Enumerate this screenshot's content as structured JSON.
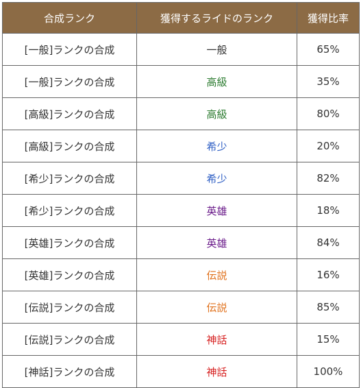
{
  "header": {
    "source_rank": "合成ランク",
    "result_rank": "獲得するライドのランク",
    "rate": "獲得比率"
  },
  "colors": {
    "一般": "#333333",
    "高級": "#2e7d32",
    "希少": "#2f5fc4",
    "英雄": "#6a1b8a",
    "伝説": "#e0701a",
    "神話": "#d61f1f"
  },
  "rows": [
    {
      "source": "[一般]ランクの合成",
      "result": "一般",
      "rate": "65%"
    },
    {
      "source": "[一般]ランクの合成",
      "result": "高級",
      "rate": "35%"
    },
    {
      "source": "[高級]ランクの合成",
      "result": "高級",
      "rate": "80%"
    },
    {
      "source": "[高級]ランクの合成",
      "result": "希少",
      "rate": "20%"
    },
    {
      "source": "[希少]ランクの合成",
      "result": "希少",
      "rate": "82%"
    },
    {
      "source": "[希少]ランクの合成",
      "result": "英雄",
      "rate": "18%"
    },
    {
      "source": "[英雄]ランクの合成",
      "result": "英雄",
      "rate": "84%"
    },
    {
      "source": "[英雄]ランクの合成",
      "result": "伝説",
      "rate": "16%"
    },
    {
      "source": "[伝説]ランクの合成",
      "result": "伝説",
      "rate": "85%"
    },
    {
      "source": "[伝説]ランクの合成",
      "result": "神話",
      "rate": "15%"
    },
    {
      "source": "[神話]ランクの合成",
      "result": "神話",
      "rate": "100%"
    }
  ]
}
